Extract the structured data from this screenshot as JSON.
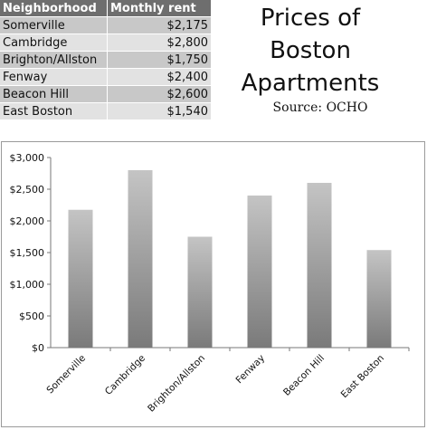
{
  "table": {
    "headers": [
      "Neighborhood",
      "Monthly rent"
    ],
    "rows": [
      [
        "Somerville",
        "$2,175"
      ],
      [
        "Cambridge",
        "$2,800"
      ],
      [
        "Brighton/Allston",
        "$1,750"
      ],
      [
        "Fenway",
        "$2,400"
      ],
      [
        "Beacon Hill",
        "$2,600"
      ],
      [
        "East Boston",
        "$1,540"
      ]
    ]
  },
  "title_line1": "Prices of Boston",
  "title_line2": "Apartments",
  "source": "Source: OCHO",
  "chart_data": {
    "type": "bar",
    "title": "Prices of Boston Apartments",
    "categories": [
      "Somerville",
      "Cambridge",
      "Brighton/Allston",
      "Fenway",
      "Beacon Hill",
      "East Boston"
    ],
    "values": [
      2175,
      2800,
      1750,
      2400,
      2600,
      1540
    ],
    "ylim": [
      0,
      3000
    ],
    "yticks": [
      0,
      500,
      1000,
      1500,
      2000,
      2500,
      3000
    ],
    "ytick_labels": [
      "$0",
      "$500",
      "$1,000",
      "$1,500",
      "$2,000",
      "$2,500",
      "$3,000"
    ],
    "grid": false,
    "legend": "none",
    "colors": {
      "bar_light": "#c4c4c4",
      "bar_dark": "#7a7a7a",
      "axis": "#777777"
    }
  }
}
